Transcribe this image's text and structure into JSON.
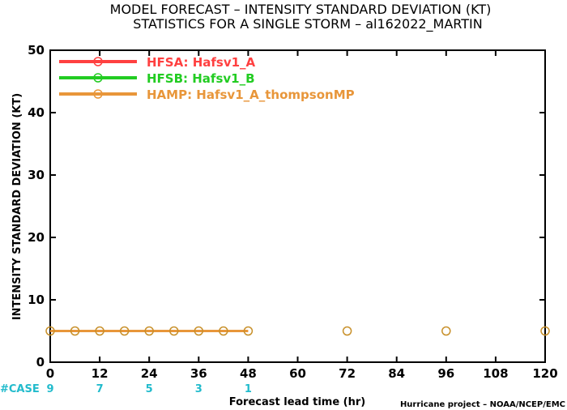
{
  "chart_data": {
    "type": "line",
    "title_line1": "MODEL FORECAST – INTENSITY STANDARD DEVIATION (KT)",
    "title_line2": "STATISTICS FOR A SINGLE STORM – al162022_MARTIN",
    "xlabel": "Forecast lead time (hr)",
    "ylabel": "INTENSITY STANDARD DEVIATION (KT)",
    "xlim": [
      0,
      120
    ],
    "ylim": [
      0,
      50
    ],
    "x_ticks": [
      "0",
      "12",
      "24",
      "36",
      "48",
      "60",
      "72",
      "84",
      "96",
      "108",
      "120"
    ],
    "y_ticks": [
      "0",
      "10",
      "20",
      "30",
      "40",
      "50"
    ],
    "legend_position": "top-left",
    "grid": false,
    "series": [
      {
        "name": "HFSA: Hafsv1_A",
        "color": "#ff4040",
        "x": [],
        "y": []
      },
      {
        "name": "HFSB: Hafsv1_B",
        "color": "#22cc22",
        "x": [],
        "y": []
      },
      {
        "name": "HAMP: Hafsv1_A_thompsonMP",
        "color": "#e8963a",
        "x": [
          0,
          6,
          12,
          18,
          24,
          30,
          36,
          42,
          48,
          72,
          96,
          120
        ],
        "y": [
          5,
          5,
          5,
          5,
          5,
          5,
          5,
          5,
          5,
          5,
          5,
          5
        ]
      }
    ],
    "line_through_x_max": 48,
    "case_label": "#CASE",
    "case_color": "#22bbcc",
    "cases": [
      {
        "x": 0,
        "n": "9"
      },
      {
        "x": 12,
        "n": "7"
      },
      {
        "x": 24,
        "n": "5"
      },
      {
        "x": 36,
        "n": "3"
      },
      {
        "x": 48,
        "n": "1"
      }
    ],
    "credit": "Hurricane project – NOAA/NCEP/EMC"
  }
}
